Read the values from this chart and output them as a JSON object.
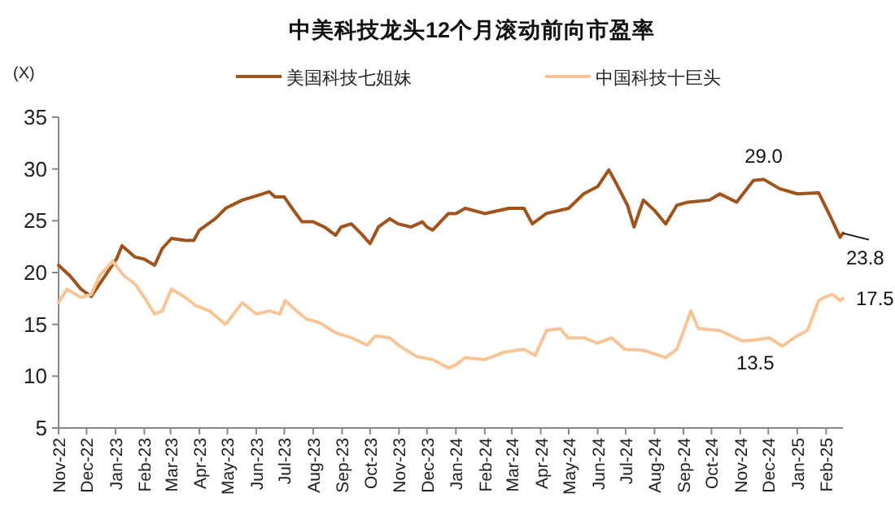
{
  "chart_data": {
    "type": "line",
    "title": "中美科技龙头12个月滚动前向市盈率",
    "ylabel": "(X)",
    "legend": "top",
    "grid": false,
    "line_style": "solid",
    "marker": "none",
    "xlim": [
      "2022-11-01",
      "2025-02-19"
    ],
    "xticks": [
      {
        "value": "2022-11-01",
        "label": "Nov-22"
      },
      {
        "value": "2022-12-01",
        "label": "Dec-22"
      },
      {
        "value": "2023-01-01",
        "label": "Jan-23"
      },
      {
        "value": "2023-02-01",
        "label": "Feb-23"
      },
      {
        "value": "2023-03-01",
        "label": "Mar-23"
      },
      {
        "value": "2023-04-01",
        "label": "Apr-23"
      },
      {
        "value": "2023-05-01",
        "label": "May-23"
      },
      {
        "value": "2023-06-01",
        "label": "Jun-23"
      },
      {
        "value": "2023-07-01",
        "label": "Jul-23"
      },
      {
        "value": "2023-08-01",
        "label": "Aug-23"
      },
      {
        "value": "2023-09-01",
        "label": "Sep-23"
      },
      {
        "value": "2023-10-01",
        "label": "Oct-23"
      },
      {
        "value": "2023-11-01",
        "label": "Nov-23"
      },
      {
        "value": "2023-12-01",
        "label": "Dec-23"
      },
      {
        "value": "2024-01-01",
        "label": "Jan-24"
      },
      {
        "value": "2024-02-01",
        "label": "Feb-24"
      },
      {
        "value": "2024-03-01",
        "label": "Mar-24"
      },
      {
        "value": "2024-04-01",
        "label": "Apr-24"
      },
      {
        "value": "2024-05-01",
        "label": "May-24"
      },
      {
        "value": "2024-06-01",
        "label": "Jun-24"
      },
      {
        "value": "2024-07-01",
        "label": "Jul-24"
      },
      {
        "value": "2024-08-01",
        "label": "Aug-24"
      },
      {
        "value": "2024-09-01",
        "label": "Sep-24"
      },
      {
        "value": "2024-10-01",
        "label": "Oct-24"
      },
      {
        "value": "2024-11-01",
        "label": "Nov-24"
      },
      {
        "value": "2024-12-01",
        "label": "Dec-24"
      },
      {
        "value": "2025-01-01",
        "label": "Jan-25"
      },
      {
        "value": "2025-02-01",
        "label": "Feb-25"
      }
    ],
    "ylim": [
      5,
      35
    ],
    "yticks": [
      5,
      10,
      15,
      20,
      25,
      30,
      35
    ],
    "series": [
      {
        "name": "美国科技七姐妹",
        "color": "#a0541c",
        "x": [
          "2022-11-01",
          "2022-11-13",
          "2022-11-25",
          "2022-12-06",
          "2023-01-02",
          "2023-01-08",
          "2023-01-22",
          "2023-02-01",
          "2023-02-12",
          "2023-02-20",
          "2023-03-02",
          "2023-03-17",
          "2023-03-26",
          "2023-04-01",
          "2023-04-18",
          "2023-04-29",
          "2023-05-17",
          "2023-05-28",
          "2023-06-15",
          "2023-06-21",
          "2023-07-01",
          "2023-07-11",
          "2023-07-20",
          "2023-08-01",
          "2023-08-13",
          "2023-08-25",
          "2023-08-31",
          "2023-09-11",
          "2023-09-23",
          "2023-10-01",
          "2023-10-10",
          "2023-10-22",
          "2023-10-31",
          "2023-11-14",
          "2023-11-26",
          "2023-12-01",
          "2023-12-07",
          "2023-12-24",
          "2024-01-01",
          "2024-01-11",
          "2024-02-01",
          "2024-02-27",
          "2024-03-14",
          "2024-03-23",
          "2024-04-07",
          "2024-05-01",
          "2024-05-17",
          "2024-06-01",
          "2024-06-13",
          "2024-06-21",
          "2024-07-03",
          "2024-07-10",
          "2024-07-20",
          "2024-08-01",
          "2024-08-13",
          "2024-08-25",
          "2024-09-06",
          "2024-09-29",
          "2024-10-10",
          "2024-10-28",
          "2024-11-15",
          "2024-11-26",
          "2024-12-13",
          "2025-01-01",
          "2025-01-24",
          "2025-02-05",
          "2025-02-16",
          "2025-02-19"
        ],
        "values": [
          20.7,
          19.7,
          18.4,
          17.7,
          21.3,
          22.6,
          21.5,
          21.3,
          20.7,
          22.3,
          23.3,
          23.1,
          23.1,
          24.1,
          25.2,
          26.2,
          27.0,
          27.3,
          27.8,
          27.3,
          27.3,
          26.0,
          24.9,
          24.9,
          24.4,
          23.6,
          24.4,
          24.7,
          23.6,
          22.8,
          24.4,
          25.2,
          24.7,
          24.4,
          24.9,
          24.4,
          24.1,
          25.7,
          25.7,
          26.2,
          25.7,
          26.2,
          26.2,
          24.7,
          25.7,
          26.2,
          27.6,
          28.3,
          29.9,
          28.6,
          26.5,
          24.4,
          27.0,
          26.0,
          24.7,
          26.5,
          26.8,
          27.0,
          27.6,
          26.8,
          28.9,
          29.0,
          28.1,
          27.6,
          27.7,
          25.5,
          23.4,
          23.8
        ]
      },
      {
        "name": "中国科技十巨头",
        "color": "#f7c596",
        "x": [
          "2022-11-01",
          "2022-11-10",
          "2022-11-25",
          "2022-12-06",
          "2022-12-15",
          "2022-12-29",
          "2023-01-10",
          "2023-01-22",
          "2023-02-01",
          "2023-02-12",
          "2023-02-20",
          "2023-03-02",
          "2023-03-17",
          "2023-03-28",
          "2023-04-12",
          "2023-04-29",
          "2023-05-17",
          "2023-06-01",
          "2023-06-15",
          "2023-06-26",
          "2023-07-02",
          "2023-07-14",
          "2023-07-25",
          "2023-08-07",
          "2023-08-25",
          "2023-09-11",
          "2023-09-28",
          "2023-10-07",
          "2023-10-22",
          "2023-11-02",
          "2023-11-20",
          "2023-12-07",
          "2023-12-24",
          "2024-01-01",
          "2024-01-11",
          "2024-02-01",
          "2024-02-21",
          "2024-03-14",
          "2024-03-26",
          "2024-04-07",
          "2024-04-22",
          "2024-04-30",
          "2024-05-17",
          "2024-06-01",
          "2024-06-16",
          "2024-06-30",
          "2024-07-20",
          "2024-08-13",
          "2024-08-25",
          "2024-09-09",
          "2024-09-17",
          "2024-10-10",
          "2024-10-22",
          "2024-11-03",
          "2024-11-17",
          "2024-12-02",
          "2024-12-16",
          "2025-01-01",
          "2025-01-12",
          "2025-01-24",
          "2025-01-30",
          "2025-02-08",
          "2025-02-16",
          "2025-02-19"
        ],
        "values": [
          17.1,
          18.4,
          17.6,
          17.9,
          19.7,
          21.1,
          19.7,
          18.9,
          17.6,
          16.0,
          16.3,
          18.4,
          17.6,
          16.8,
          16.3,
          15.0,
          17.1,
          16.0,
          16.3,
          16.0,
          17.3,
          16.3,
          15.5,
          15.2,
          14.2,
          13.7,
          13.0,
          13.9,
          13.7,
          12.9,
          11.9,
          11.6,
          10.8,
          11.1,
          11.8,
          11.6,
          12.3,
          12.6,
          12.0,
          14.4,
          14.6,
          13.7,
          13.7,
          13.2,
          13.7,
          12.6,
          12.5,
          11.8,
          12.6,
          16.3,
          14.6,
          14.4,
          13.9,
          13.4,
          13.5,
          13.7,
          12.9,
          13.9,
          14.4,
          17.3,
          17.6,
          17.9,
          17.3,
          17.5
        ]
      }
    ],
    "annotations": [
      {
        "text": "29.0",
        "x": "2024-11-26",
        "y": 29.0
      },
      {
        "text": "23.8",
        "x": "2025-02-19",
        "y": 23.8
      },
      {
        "text": "13.5",
        "x": "2024-11-17",
        "y": 13.5
      },
      {
        "text": "17.5",
        "x": "2025-02-19",
        "y": 17.5
      }
    ]
  }
}
